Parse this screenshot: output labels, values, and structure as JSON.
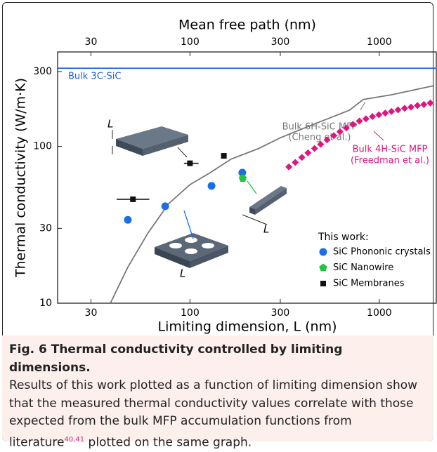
{
  "chart_data": {
    "type": "scatter",
    "title": "Mean free path (nm)",
    "x_label": "Limiting dimension, L (nm)",
    "y_label": "Thermal conductivity (W/m·K)",
    "log_x": true,
    "log_y": true,
    "xlim": [
      20,
      2000
    ],
    "xticks": [
      30,
      100,
      300,
      1000
    ],
    "top_xlim": [
      20,
      2000
    ],
    "top_xticks": [
      30,
      100,
      300,
      1000
    ],
    "ylim": [
      10,
      400
    ],
    "yticks": [
      10,
      30,
      100,
      300
    ],
    "legend_title": "This work:",
    "legend_corner": "lower right",
    "annotations": [
      "Bulk 6H-SiC MFP",
      "(Cheng et al.)",
      "Bulk 4H-SiC MFP",
      "(Freedman et al.)",
      "L",
      "L",
      "L"
    ],
    "series": [
      {
        "name": "Bulk 3C-SiC",
        "kind": "hline",
        "color": "#1a5fd8",
        "values": [
          315
        ]
      },
      {
        "name": "Bulk 6H-SiC MFP",
        "kind": "line",
        "color": "#777777",
        "x": [
          38,
          47,
          60,
          77,
          100,
          128,
          165,
          231,
          298,
          455,
          695,
          823,
          1155,
          1950
        ],
        "values": [
          10,
          17,
          28,
          43,
          57,
          68,
          83,
          97,
          113,
          139,
          170,
          199,
          213,
          244
        ]
      },
      {
        "name": "Bulk 4H-SiC MFP",
        "kind": "diamond",
        "color": "#e0157f",
        "x": [
          333,
          360,
          390,
          420,
          455,
          490,
          530,
          575,
          620,
          670,
          725,
          785,
          850,
          920,
          995,
          1075,
          1160,
          1255,
          1360,
          1470,
          1590,
          1720,
          1860
        ],
        "values": [
          74,
          79,
          85,
          91,
          97,
          103,
          110,
          117,
          124,
          131,
          138,
          145,
          150,
          155,
          159,
          163,
          167,
          171,
          175,
          178,
          182,
          185,
          189
        ]
      },
      {
        "name": "SiC Phononic crystals",
        "kind": "circle",
        "color": "#1a6fe8",
        "legend": true,
        "x": [
          47,
          74,
          130,
          189
        ],
        "values": [
          34,
          41.5,
          56,
          68
        ]
      },
      {
        "name": "SiC Nanowire",
        "kind": "pentagon",
        "color": "#22c33d",
        "legend": true,
        "x": [
          190
        ],
        "values": [
          62.5
        ]
      },
      {
        "name": "SiC Membranes",
        "kind": "square",
        "color": "#111111",
        "legend": true,
        "x": [
          50,
          100,
          151
        ],
        "values": [
          46,
          78,
          87
        ],
        "xerr_low": [
          41,
          93,
          151
        ],
        "xerr_high": [
          61,
          111,
          151
        ]
      }
    ]
  },
  "caption": {
    "title": "Fig. 6 Thermal conductivity controlled by limiting dimensions.",
    "text": "Results of this work plotted as a function of limiting dimension show that the measured thermal conductivity values correlate with those expected from the bulk MFP accumulation functions from literature",
    "citation": "40,41",
    "text_end": " plotted on the same graph."
  }
}
